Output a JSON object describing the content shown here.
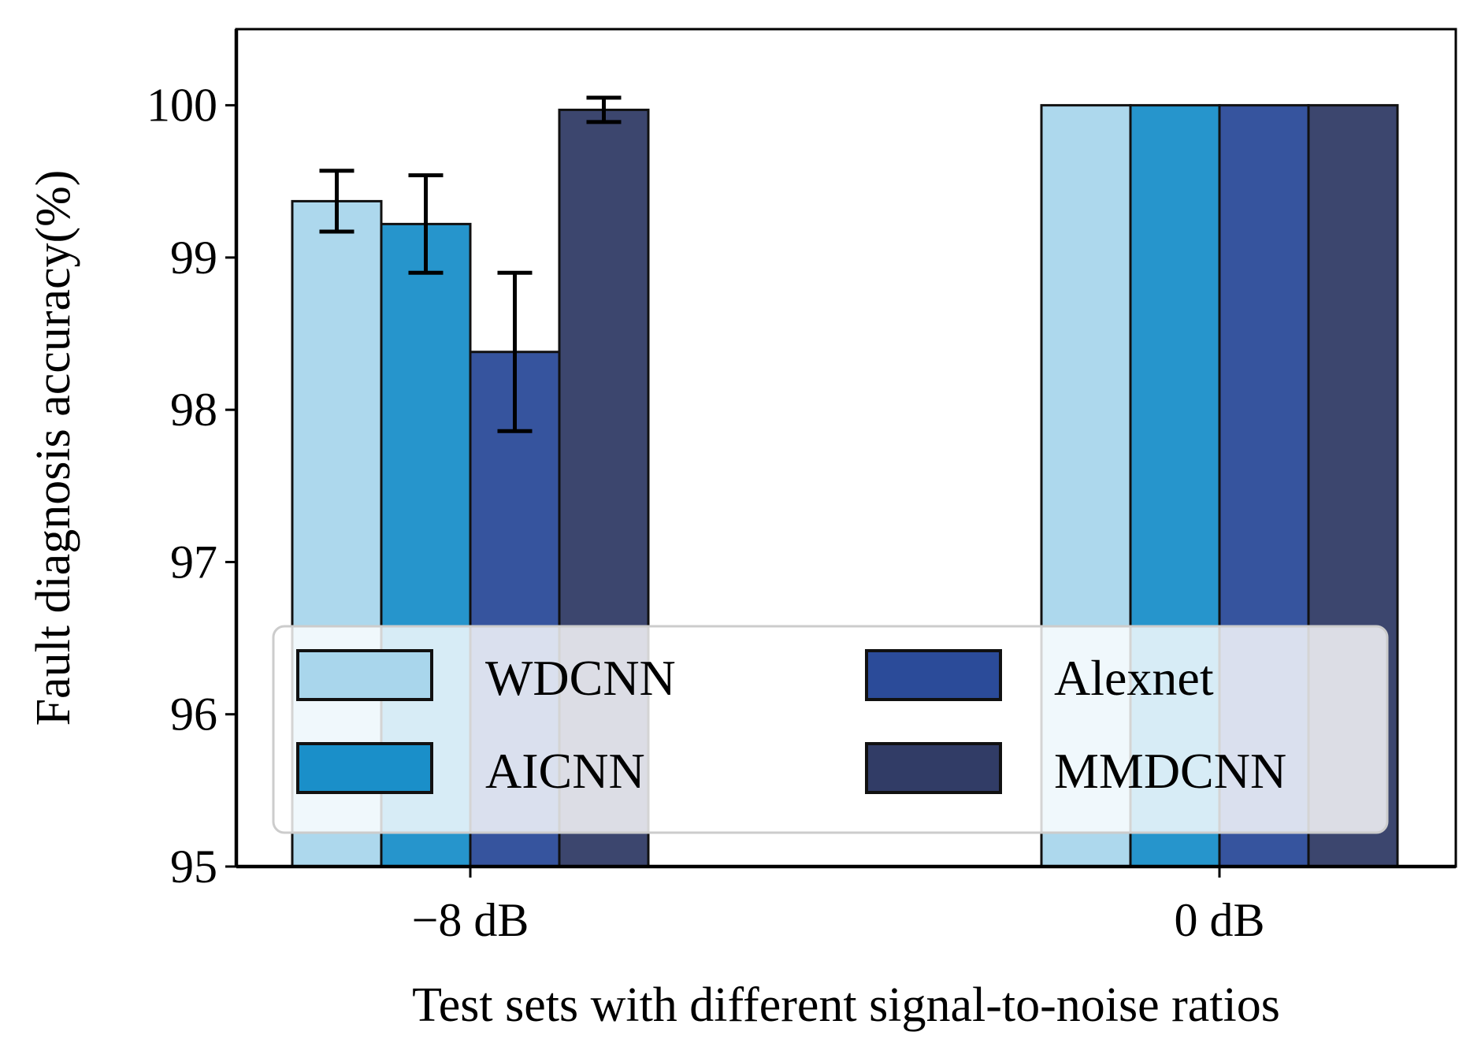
{
  "chart_data": {
    "type": "bar",
    "title": "",
    "xlabel": "Test sets with different signal-to-noise ratios",
    "ylabel": "Fault diagnosis accuracy(%)",
    "ylim": [
      95,
      100.5
    ],
    "yticks": [
      95,
      96,
      97,
      98,
      99,
      100
    ],
    "categories": [
      "−8 dB",
      "0 dB"
    ],
    "series": [
      {
        "name": "WDCNN",
        "color": "#a9d6ec",
        "values": [
          99.37,
          100.0
        ],
        "errors": [
          0.2,
          0.0
        ]
      },
      {
        "name": "AICNN",
        "color": "#1a8fc9",
        "values": [
          99.22,
          100.0
        ],
        "errors": [
          0.32,
          0.0
        ]
      },
      {
        "name": "Alexnet",
        "color": "#2b4b99",
        "values": [
          98.38,
          100.0
        ],
        "errors": [
          0.52,
          0.0
        ]
      },
      {
        "name": "MMDCNN",
        "color": "#313c66",
        "values": [
          99.97,
          100.0
        ],
        "errors": [
          0.08,
          0.0
        ]
      }
    ],
    "legend": {
      "placement": "lower-center",
      "columns": 2
    },
    "grid": false
  }
}
